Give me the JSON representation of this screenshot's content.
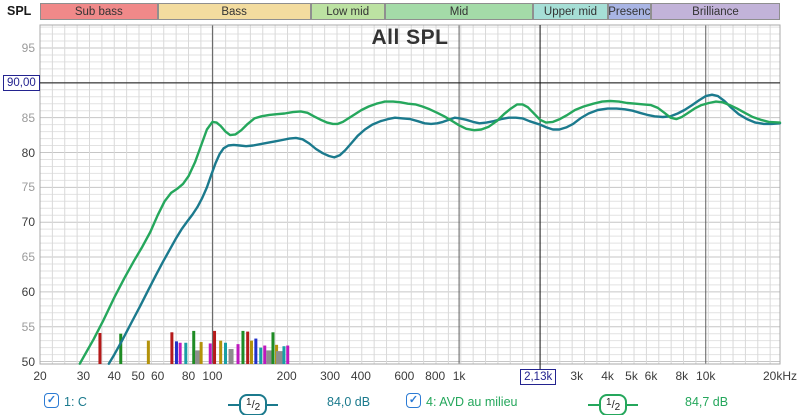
{
  "header": {
    "y_axis_unit": "SPL"
  },
  "bands": [
    {
      "label": "Sub bass",
      "f1": 20,
      "f2": 60,
      "color": "#F08989"
    },
    {
      "label": "Bass",
      "f1": 60,
      "f2": 250,
      "color": "#F3DC9F"
    },
    {
      "label": "Low mid",
      "f1": 250,
      "f2": 500,
      "color": "#BCE2A2"
    },
    {
      "label": "Mid",
      "f1": 500,
      "f2": 2000,
      "color": "#A4DBA8"
    },
    {
      "label": "Upper mid",
      "f1": 2000,
      "f2": 4000,
      "color": "#A6DFD6"
    },
    {
      "label": "Presenc",
      "f1": 4000,
      "f2": 6000,
      "color": "#A9B5E4"
    },
    {
      "label": "Brilliance",
      "f1": 6000,
      "f2": 20000,
      "color": "#C2B3D9"
    }
  ],
  "chart_data": {
    "type": "line",
    "title": "All SPL",
    "x_scale": "log",
    "x_range_hz": [
      20,
      20000
    ],
    "y_range_db": [
      49.65,
      98.3
    ],
    "grid": true,
    "major_vlines_hz": [
      100,
      1000,
      10000
    ],
    "x_ticks": [
      {
        "f": 20,
        "label": "20"
      },
      {
        "f": 30,
        "label": "30"
      },
      {
        "f": 40,
        "label": "40"
      },
      {
        "f": 50,
        "label": "50"
      },
      {
        "f": 60,
        "label": "60"
      },
      {
        "f": 80,
        "label": "80"
      },
      {
        "f": 100,
        "label": "100"
      },
      {
        "f": 200,
        "label": "200"
      },
      {
        "f": 300,
        "label": "300"
      },
      {
        "f": 400,
        "label": "400"
      },
      {
        "f": 600,
        "label": "600"
      },
      {
        "f": 800,
        "label": "800"
      },
      {
        "f": 1000,
        "label": "1k"
      },
      {
        "f": 3000,
        "label": "3k"
      },
      {
        "f": 4000,
        "label": "4k"
      },
      {
        "f": 5000,
        "label": "5k"
      },
      {
        "f": 6000,
        "label": "6k"
      },
      {
        "f": 8000,
        "label": "8k"
      },
      {
        "f": 10000,
        "label": "10k"
      },
      {
        "f": 20000,
        "label": "20kHz"
      }
    ],
    "y_ticks": [
      {
        "db": 95,
        "label": "95",
        "major": false
      },
      {
        "db": 85,
        "label": "85",
        "major": false
      },
      {
        "db": 80,
        "label": "80",
        "major": true
      },
      {
        "db": 75,
        "label": "75",
        "major": false
      },
      {
        "db": 70,
        "label": "70",
        "major": true
      },
      {
        "db": 65,
        "label": "65",
        "major": false
      },
      {
        "db": 60,
        "label": "60",
        "major": true
      },
      {
        "db": 55,
        "label": "55",
        "major": false
      },
      {
        "db": 50,
        "label": "50",
        "major": true
      }
    ],
    "crosshair": {
      "freq_hz": 2130,
      "freq_label": "2,13k",
      "spl_db": 90,
      "spl_label": "90,00"
    },
    "series": [
      {
        "name": "1: C",
        "color": "#1B7A8D",
        "points": [
          [
            38,
            49.7
          ],
          [
            40,
            51
          ],
          [
            43,
            53
          ],
          [
            47,
            55.6
          ],
          [
            51,
            58
          ],
          [
            55,
            60.3
          ],
          [
            59,
            62.4
          ],
          [
            63,
            64.3
          ],
          [
            67,
            66
          ],
          [
            71,
            67.6
          ],
          [
            75,
            69
          ],
          [
            79,
            70.1
          ],
          [
            83,
            71.1
          ],
          [
            87,
            72.2
          ],
          [
            91,
            73.5
          ],
          [
            95,
            75
          ],
          [
            99,
            76.8
          ],
          [
            103,
            78.5
          ],
          [
            107,
            79.8
          ],
          [
            111,
            80.6
          ],
          [
            116,
            81
          ],
          [
            122,
            81.1
          ],
          [
            129,
            81
          ],
          [
            137,
            80.9
          ],
          [
            146,
            81
          ],
          [
            156,
            81.2
          ],
          [
            167,
            81.4
          ],
          [
            179,
            81.6
          ],
          [
            192,
            81.8
          ],
          [
            205,
            82
          ],
          [
            218,
            82.1
          ],
          [
            232,
            81.9
          ],
          [
            247,
            81.3
          ],
          [
            263,
            80.5
          ],
          [
            280,
            79.9
          ],
          [
            297,
            79.5
          ],
          [
            312,
            79.3
          ],
          [
            328,
            79.6
          ],
          [
            345,
            80.3
          ],
          [
            365,
            81.3
          ],
          [
            388,
            82.4
          ],
          [
            415,
            83.3
          ],
          [
            445,
            84
          ],
          [
            480,
            84.5
          ],
          [
            515,
            84.8
          ],
          [
            550,
            85
          ],
          [
            590,
            84.9
          ],
          [
            635,
            84.8
          ],
          [
            680,
            84.5
          ],
          [
            725,
            84.2
          ],
          [
            770,
            84.1
          ],
          [
            815,
            84.2
          ],
          [
            860,
            84.4
          ],
          [
            910,
            84.7
          ],
          [
            960,
            85
          ],
          [
            1010,
            84.9
          ],
          [
            1070,
            84.7
          ],
          [
            1140,
            84.4
          ],
          [
            1210,
            84.2
          ],
          [
            1290,
            84.3
          ],
          [
            1380,
            84.5
          ],
          [
            1480,
            84.8
          ],
          [
            1590,
            85
          ],
          [
            1700,
            85
          ],
          [
            1810,
            84.9
          ],
          [
            1930,
            84.5
          ],
          [
            2050,
            84.2
          ],
          [
            2130,
            84
          ],
          [
            2260,
            83.6
          ],
          [
            2400,
            83.3
          ],
          [
            2550,
            83.3
          ],
          [
            2720,
            83.6
          ],
          [
            2900,
            84.1
          ],
          [
            3100,
            84.9
          ],
          [
            3350,
            85.6
          ],
          [
            3650,
            86.1
          ],
          [
            4000,
            86.3
          ],
          [
            4350,
            86.3
          ],
          [
            4700,
            86.2
          ],
          [
            5050,
            86
          ],
          [
            5400,
            85.7
          ],
          [
            5800,
            85.4
          ],
          [
            6200,
            85.2
          ],
          [
            6700,
            85.1
          ],
          [
            7200,
            85.2
          ],
          [
            7700,
            85.6
          ],
          [
            8200,
            86.1
          ],
          [
            8800,
            86.8
          ],
          [
            9400,
            87.5
          ],
          [
            10000,
            88.1
          ],
          [
            10600,
            88.3
          ],
          [
            11200,
            88.1
          ],
          [
            11900,
            87.4
          ],
          [
            12700,
            86.4
          ],
          [
            13600,
            85.5
          ],
          [
            14700,
            84.8
          ],
          [
            15900,
            84.3
          ],
          [
            17200,
            84.1
          ],
          [
            18500,
            84.1
          ],
          [
            20000,
            84.2
          ]
        ]
      },
      {
        "name": "4: AVD au milieu",
        "color": "#25A75C",
        "points": [
          [
            29,
            49.7
          ],
          [
            31,
            51.5
          ],
          [
            33,
            53.2
          ],
          [
            36,
            55.8
          ],
          [
            40,
            59.2
          ],
          [
            44,
            62
          ],
          [
            48,
            64.4
          ],
          [
            52,
            66.5
          ],
          [
            56,
            68.6
          ],
          [
            60,
            71
          ],
          [
            64,
            73
          ],
          [
            68,
            74.2
          ],
          [
            72,
            74.8
          ],
          [
            76,
            75.5
          ],
          [
            80,
            76.6
          ],
          [
            85,
            78.6
          ],
          [
            90,
            81
          ],
          [
            95,
            83.3
          ],
          [
            100,
            84.4
          ],
          [
            104,
            84.3
          ],
          [
            108,
            83.8
          ],
          [
            113,
            83
          ],
          [
            118,
            82.5
          ],
          [
            124,
            82.6
          ],
          [
            131,
            83.2
          ],
          [
            139,
            84.1
          ],
          [
            148,
            84.9
          ],
          [
            158,
            85.2
          ],
          [
            170,
            85.4
          ],
          [
            182,
            85.5
          ],
          [
            196,
            85.6
          ],
          [
            212,
            85.8
          ],
          [
            228,
            85.9
          ],
          [
            243,
            85.7
          ],
          [
            258,
            85.2
          ],
          [
            275,
            84.7
          ],
          [
            292,
            84.3
          ],
          [
            308,
            84.1
          ],
          [
            322,
            84.1
          ],
          [
            338,
            84.4
          ],
          [
            356,
            84.9
          ],
          [
            378,
            85.5
          ],
          [
            402,
            86.1
          ],
          [
            430,
            86.6
          ],
          [
            462,
            87
          ],
          [
            500,
            87.3
          ],
          [
            540,
            87.3
          ],
          [
            580,
            87.2
          ],
          [
            620,
            87
          ],
          [
            665,
            86.9
          ],
          [
            710,
            86.6
          ],
          [
            760,
            86.2
          ],
          [
            815,
            85.7
          ],
          [
            870,
            85.2
          ],
          [
            930,
            84.6
          ],
          [
            1000,
            83.9
          ],
          [
            1070,
            83.4
          ],
          [
            1150,
            83.2
          ],
          [
            1230,
            83.3
          ],
          [
            1320,
            83.7
          ],
          [
            1420,
            84.5
          ],
          [
            1520,
            85.5
          ],
          [
            1620,
            86.3
          ],
          [
            1720,
            86.9
          ],
          [
            1810,
            86.9
          ],
          [
            1900,
            86.5
          ],
          [
            2000,
            85.7
          ],
          [
            2130,
            84.7
          ],
          [
            2250,
            84.3
          ],
          [
            2400,
            84.4
          ],
          [
            2560,
            84.8
          ],
          [
            2750,
            85.4
          ],
          [
            2950,
            86.1
          ],
          [
            3200,
            86.6
          ],
          [
            3500,
            87
          ],
          [
            3800,
            87.3
          ],
          [
            4100,
            87.4
          ],
          [
            4450,
            87.3
          ],
          [
            4800,
            87.1
          ],
          [
            5200,
            87
          ],
          [
            5600,
            86.9
          ],
          [
            6000,
            86.8
          ],
          [
            6400,
            86.4
          ],
          [
            6800,
            85.7
          ],
          [
            7200,
            85
          ],
          [
            7600,
            84.8
          ],
          [
            8000,
            85.1
          ],
          [
            8500,
            85.7
          ],
          [
            9000,
            86.3
          ],
          [
            9600,
            86.8
          ],
          [
            10300,
            87.1
          ],
          [
            11000,
            87.3
          ],
          [
            11700,
            87.2
          ],
          [
            12500,
            86.8
          ],
          [
            13400,
            86.3
          ],
          [
            14400,
            85.7
          ],
          [
            15500,
            85.1
          ],
          [
            16700,
            84.7
          ],
          [
            18000,
            84.4
          ],
          [
            20000,
            84.3
          ]
        ]
      }
    ],
    "mode_bars": [
      {
        "f": 35,
        "db": 54.1,
        "color": "#B51A1A"
      },
      {
        "f": 42.5,
        "db": 54.0,
        "color": "#1F8C24"
      },
      {
        "f": 55,
        "db": 53.0,
        "color": "#B3920B"
      },
      {
        "f": 68.5,
        "db": 54.2,
        "color": "#B51A1A"
      },
      {
        "f": 71.5,
        "db": 52.9,
        "color": "#2231C8"
      },
      {
        "f": 74,
        "db": 52.7,
        "color": "#BE18BE"
      },
      {
        "f": 78,
        "db": 52.7,
        "color": "#189FA6"
      },
      {
        "f": 84,
        "db": 54.4,
        "color": "#1F8C24"
      },
      {
        "f": 87,
        "db": 51.6,
        "color": "#8E8E8E",
        "w": 5
      },
      {
        "f": 90,
        "db": 52.8,
        "color": "#B3920B"
      },
      {
        "f": 98,
        "db": 52.6,
        "color": "#BE18BE"
      },
      {
        "f": 102,
        "db": 54.4,
        "color": "#B51A1A"
      },
      {
        "f": 108,
        "db": 53.0,
        "color": "#B3920B"
      },
      {
        "f": 113,
        "db": 52.7,
        "color": "#189FA6"
      },
      {
        "f": 119,
        "db": 51.8,
        "color": "#8E8E8E",
        "w": 5
      },
      {
        "f": 127,
        "db": 52.5,
        "color": "#BE18BE"
      },
      {
        "f": 133,
        "db": 54.4,
        "color": "#1F8C24"
      },
      {
        "f": 139,
        "db": 54.3,
        "color": "#B51A1A"
      },
      {
        "f": 144,
        "db": 53.0,
        "color": "#B3920B"
      },
      {
        "f": 150,
        "db": 53.3,
        "color": "#2231C8"
      },
      {
        "f": 157,
        "db": 52.0,
        "color": "#189FA6"
      },
      {
        "f": 163,
        "db": 52.3,
        "color": "#BE18BE"
      },
      {
        "f": 170,
        "db": 51.6,
        "color": "#8E8E8E",
        "w": 6
      },
      {
        "f": 176,
        "db": 54.2,
        "color": "#1F8C24"
      },
      {
        "f": 182,
        "db": 52.4,
        "color": "#B3920B"
      },
      {
        "f": 188,
        "db": 51.5,
        "color": "#8E8E8E",
        "w": 8
      },
      {
        "f": 195,
        "db": 52.2,
        "color": "#189FA6"
      },
      {
        "f": 202,
        "db": 52.3,
        "color": "#BE18BE"
      }
    ]
  },
  "legend": [
    {
      "checked": true,
      "label": "1: C",
      "smoothing": "1/2",
      "value": "84,0 dB",
      "color": "#1B7A8D"
    },
    {
      "checked": true,
      "label": "4: AVD au milieu",
      "smoothing": "1/2",
      "value": "84,7 dB",
      "color": "#25A75C"
    }
  ],
  "checkbox_color": "#2C7BD4",
  "crosshair_color": "#23238F"
}
